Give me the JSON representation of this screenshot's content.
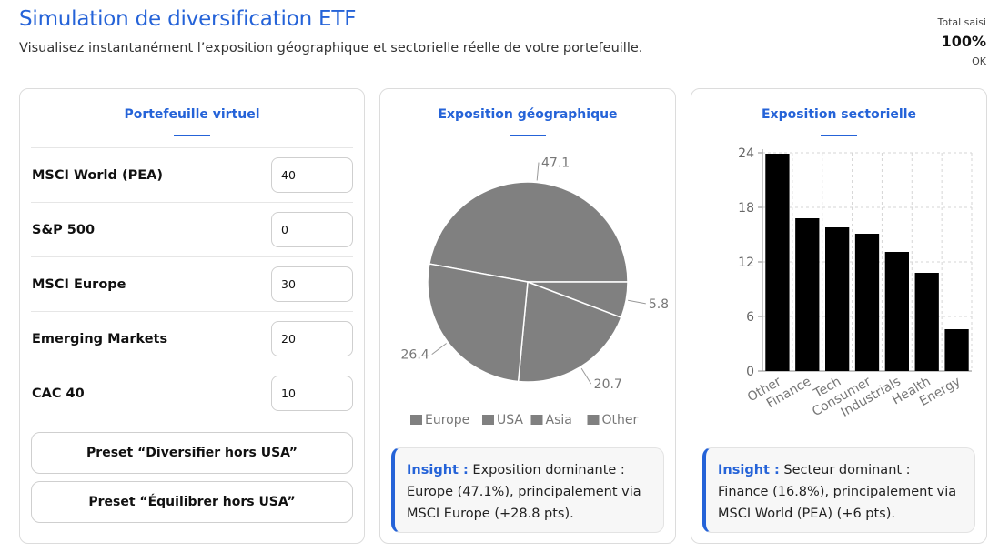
{
  "header": {
    "title": "Simulation de diversification ETF",
    "subtitle": "Visualisez instantanément l’exposition géographique et sectorielle réelle de votre portefeuille.",
    "total_label": "Total saisi",
    "total_value": "100%",
    "total_status": "OK"
  },
  "portfolio": {
    "title": "Portefeuille virtuel",
    "rows": [
      {
        "label": "MSCI World (PEA)",
        "value": "40"
      },
      {
        "label": "S&P 500",
        "value": "0"
      },
      {
        "label": "MSCI Europe",
        "value": "30"
      },
      {
        "label": "Emerging Markets",
        "value": "20"
      },
      {
        "label": "CAC 40",
        "value": "10"
      }
    ],
    "preset_1": "Preset “Diversifier hors USA”",
    "preset_2": "Preset “Équilibrer hors USA”"
  },
  "geo": {
    "title": "Exposition géographique",
    "insight_key": "Insight :",
    "insight_text": " Exposition dominante : Europe (47.1%), principalement via MSCI Europe (+28.8 pts)."
  },
  "sector": {
    "title": "Exposition sectorielle",
    "insight_key": "Insight :",
    "insight_text": " Secteur dominant : Finance (16.8%), principalement via MSCI World (PEA) (+6 pts)."
  },
  "colors": {
    "accent": "#2563d8",
    "pie_fill": "#808080",
    "bar_fill": "#000000",
    "legend_swatch": "#808080"
  },
  "chart_data": [
    {
      "type": "pie",
      "categories": [
        "Europe",
        "USA",
        "Asia",
        "Other"
      ],
      "values": [
        47.1,
        5.8,
        20.7,
        26.4
      ],
      "value_labels": [
        "47.1",
        "5.8",
        "20.7",
        "26.4"
      ],
      "legend": "bottom"
    },
    {
      "type": "bar",
      "categories": [
        "Other",
        "Finance",
        "Tech",
        "Consumer",
        "Industrials",
        "Health",
        "Energy"
      ],
      "values": [
        23.9,
        16.8,
        15.8,
        15.1,
        13.1,
        10.8,
        4.6
      ],
      "ylim": [
        0,
        24
      ],
      "yticks": [
        "0",
        "6",
        "12",
        "18",
        "24"
      ],
      "ytick_values": [
        0,
        6,
        12,
        18,
        24
      ],
      "grid": true
    }
  ]
}
